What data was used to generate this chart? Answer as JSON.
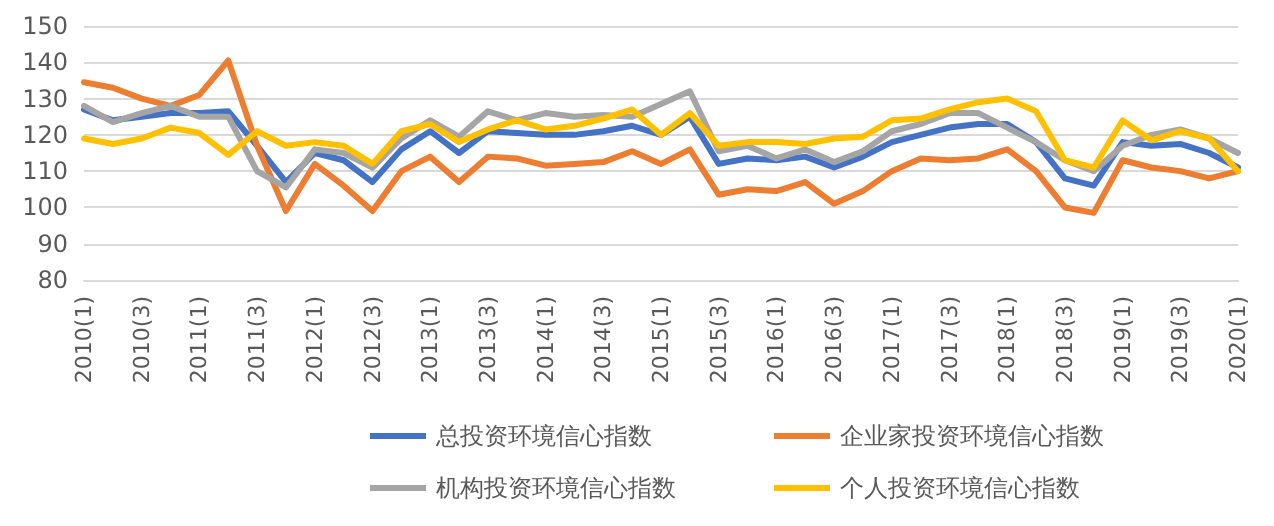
{
  "chart_data": {
    "type": "line",
    "categories": [
      "2010(1)",
      null,
      "2010(3)",
      null,
      "2011(1)",
      null,
      "2011(3)",
      null,
      "2012(1)",
      null,
      "2012(3)",
      null,
      "2013(1)",
      null,
      "2013(3)",
      null,
      "2014(1)",
      null,
      "2014(3)",
      null,
      "2015(1)",
      null,
      "2015(3)",
      null,
      "2016(1)",
      null,
      "2016(3)",
      null,
      "2017(1)",
      null,
      "2017(3)",
      null,
      "2018(1)",
      null,
      "2018(3)",
      null,
      "2019(1)",
      null,
      "2019(3)",
      null,
      "2020(1)"
    ],
    "series": [
      {
        "name": "总投资环境信心指数",
        "color": "#4472c4",
        "values": [
          127,
          124,
          125,
          126,
          126,
          126.5,
          117,
          107,
          115,
          113,
          107,
          116,
          121,
          115,
          121,
          120.5,
          120,
          120,
          121,
          122.5,
          120,
          125,
          112,
          113.5,
          113,
          114,
          111,
          114,
          118,
          120,
          122,
          123,
          123,
          118,
          108,
          106,
          118,
          117,
          117.5,
          115,
          111
        ]
      },
      {
        "name": "企业家投资环境信心指数",
        "color": "#ed7d31",
        "values": [
          134.5,
          133,
          130,
          128,
          131,
          140.5,
          117,
          99,
          112,
          106,
          99,
          110,
          114,
          107,
          114,
          113.5,
          111.5,
          112,
          112.5,
          115.5,
          112,
          116,
          103.5,
          105,
          104.5,
          107,
          101,
          104.5,
          110,
          113.5,
          113,
          113.5,
          116,
          110,
          100,
          98.5,
          113,
          111,
          110,
          108,
          110
        ]
      },
      {
        "name": "机构投资环境信心指数",
        "color": "#a5a5a5",
        "values": [
          128,
          123.5,
          126,
          128,
          125,
          125,
          110,
          105.5,
          116,
          115,
          111,
          119,
          124,
          119.5,
          126.5,
          124,
          126,
          125,
          125.5,
          125,
          128.5,
          132,
          115.5,
          117,
          113.5,
          116,
          112.5,
          115.5,
          121,
          123,
          126,
          126,
          122,
          118,
          113,
          110,
          117,
          120,
          121.5,
          119,
          115
        ]
      },
      {
        "name": "个人投资环境信心指数",
        "color": "#ffc000",
        "values": [
          119,
          117.5,
          119,
          122,
          120.5,
          114.5,
          121,
          117,
          118,
          117,
          112,
          121,
          123,
          118,
          121.5,
          124,
          121.5,
          122.5,
          124.5,
          127,
          120,
          126,
          117,
          118,
          118,
          117.5,
          119,
          119.5,
          124,
          124.5,
          127,
          129,
          130,
          126.5,
          113,
          111,
          124,
          118.5,
          121,
          119,
          110
        ]
      }
    ],
    "ylim": [
      80,
      150
    ],
    "yticks": [
      80,
      90,
      100,
      110,
      120,
      130,
      140,
      150
    ],
    "grid": "y",
    "legend": "bottom",
    "marker": "none",
    "line_style": "solid"
  }
}
